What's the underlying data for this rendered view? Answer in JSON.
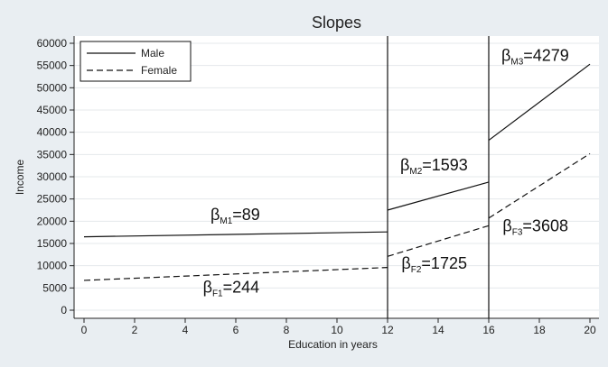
{
  "chart_data": {
    "type": "line",
    "title": "Slopes",
    "xlabel": "Education in years",
    "ylabel": "Income",
    "xlim": [
      0,
      20
    ],
    "ylim": [
      0,
      60000
    ],
    "xticks": [
      0,
      2,
      4,
      6,
      8,
      10,
      12,
      14,
      16,
      18,
      20
    ],
    "yticks": [
      0,
      5000,
      10000,
      15000,
      20000,
      25000,
      30000,
      35000,
      40000,
      45000,
      50000,
      55000,
      60000
    ],
    "ytick_labels": [
      "0",
      "5000",
      "10000",
      "15000",
      "20000",
      "25000",
      "30000",
      "35000",
      "40000",
      "45000",
      "50000",
      "55000",
      "60000"
    ],
    "grid": true,
    "legend_position": "top-left",
    "vlines": [
      12,
      16
    ],
    "series": [
      {
        "name": "Male",
        "style": "solid",
        "segments": [
          [
            [
              0,
              16500
            ],
            [
              12,
              17600
            ]
          ],
          [
            [
              12,
              22500
            ],
            [
              16,
              28800
            ]
          ],
          [
            [
              16,
              38200
            ],
            [
              20,
              55300
            ]
          ]
        ]
      },
      {
        "name": "Female",
        "style": "dashed",
        "segments": [
          [
            [
              0,
              6700
            ],
            [
              12,
              9600
            ]
          ],
          [
            [
              12,
              12100
            ],
            [
              16,
              19000
            ]
          ],
          [
            [
              16,
              20700
            ],
            [
              20,
              35200
            ]
          ]
        ]
      }
    ],
    "annotations": [
      {
        "base": "β",
        "sub": "M1",
        "rest": "=89",
        "x": 5,
        "y": 20300
      },
      {
        "base": "β",
        "sub": "F1",
        "rest": "=244",
        "x": 4.7,
        "y": 4000
      },
      {
        "base": "β",
        "sub": "M2",
        "rest": "=1593",
        "x": 12.5,
        "y": 31400
      },
      {
        "base": "β",
        "sub": "F2",
        "rest": "=1725",
        "x": 12.55,
        "y": 9300
      },
      {
        "base": "β",
        "sub": "M3",
        "rest": "=4279",
        "x": 16.5,
        "y": 56000
      },
      {
        "base": "β",
        "sub": "F3",
        "rest": "=3608",
        "x": 16.55,
        "y": 17700
      }
    ]
  }
}
